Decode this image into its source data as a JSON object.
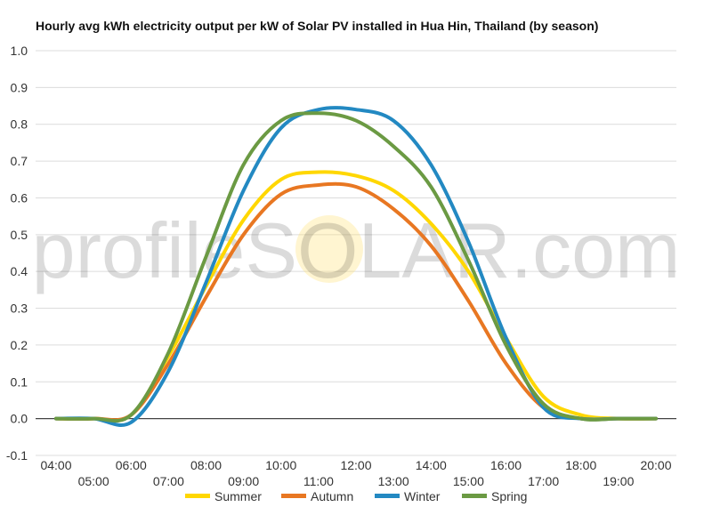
{
  "chart_data": {
    "type": "line",
    "title": "Hourly avg kWh electricity output per kW of Solar PV installed in Hua Hin, Thailand (by season)",
    "xlabel": "",
    "ylabel": "",
    "ylim": [
      -0.1,
      1.0
    ],
    "yticks": [
      "-0.1",
      "0.0",
      "0.1",
      "0.2",
      "0.3",
      "0.4",
      "0.5",
      "0.6",
      "0.7",
      "0.8",
      "0.9",
      "1.0"
    ],
    "x_ticks_upper": [
      "04:00",
      "06:00",
      "08:00",
      "10:00",
      "12:00",
      "14:00",
      "16:00",
      "18:00",
      "20:00"
    ],
    "x_ticks_lower": [
      "05:00",
      "07:00",
      "09:00",
      "11:00",
      "13:00",
      "15:00",
      "17:00",
      "19:00"
    ],
    "x": [
      4,
      5,
      6,
      7,
      8,
      9,
      10,
      11,
      12,
      13,
      14,
      15,
      16,
      17,
      18,
      19,
      20
    ],
    "grid": true,
    "legend_position": "bottom",
    "watermark": "profileSOLAR.com",
    "series": [
      {
        "name": "Summer",
        "color": "#FFD700",
        "values": [
          0,
          0,
          0.01,
          0.17,
          0.36,
          0.54,
          0.65,
          0.67,
          0.66,
          0.62,
          0.53,
          0.4,
          0.22,
          0.06,
          0.01,
          0,
          0
        ]
      },
      {
        "name": "Autumn",
        "color": "#E87722",
        "values": [
          0,
          0,
          0.01,
          0.15,
          0.33,
          0.5,
          0.61,
          0.635,
          0.63,
          0.57,
          0.47,
          0.32,
          0.15,
          0.03,
          0,
          0,
          0
        ]
      },
      {
        "name": "Winter",
        "color": "#2389C2",
        "values": [
          0,
          0,
          -0.01,
          0.13,
          0.37,
          0.62,
          0.79,
          0.84,
          0.84,
          0.81,
          0.69,
          0.48,
          0.22,
          0.03,
          0,
          0,
          0
        ]
      },
      {
        "name": "Spring",
        "color": "#6B9A43",
        "values": [
          0,
          0,
          0.01,
          0.18,
          0.44,
          0.69,
          0.81,
          0.83,
          0.81,
          0.74,
          0.63,
          0.43,
          0.2,
          0.04,
          0,
          0,
          0
        ]
      }
    ]
  }
}
